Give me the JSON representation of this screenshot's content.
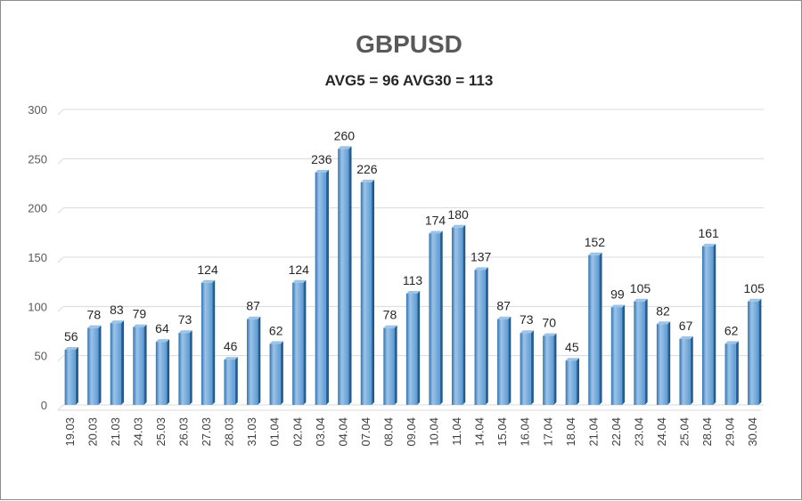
{
  "chart_data": {
    "type": "bar",
    "title": "GBPUSD",
    "subtitle": "AVG5 = 96 AVG30 = 113",
    "categories": [
      "19.03",
      "20.03",
      "21.03",
      "24.03",
      "25.03",
      "26.03",
      "27.03",
      "28.03",
      "31.03",
      "01.04",
      "02.04",
      "03.04",
      "04.04",
      "07.04",
      "08.04",
      "09.04",
      "10.04",
      "11.04",
      "14.04",
      "15.04",
      "16.04",
      "17.04",
      "18.04",
      "21.04",
      "22.04",
      "23.04",
      "24.04",
      "25.04",
      "28.04",
      "29.04",
      "30.04"
    ],
    "values": [
      56,
      78,
      83,
      79,
      64,
      73,
      124,
      46,
      87,
      62,
      124,
      236,
      260,
      226,
      78,
      113,
      174,
      180,
      137,
      87,
      73,
      70,
      45,
      152,
      99,
      105,
      82,
      67,
      161,
      62,
      105
    ],
    "ylim": [
      0,
      300
    ],
    "yticks": [
      0,
      50,
      100,
      150,
      200,
      250,
      300
    ],
    "grid": true,
    "data_labels": true,
    "colors": {
      "bar": "#5b9bd5",
      "bar_light": "#9dc3e6",
      "bar_dark": "#2e75b6",
      "grid": "#d9d9d9"
    }
  }
}
